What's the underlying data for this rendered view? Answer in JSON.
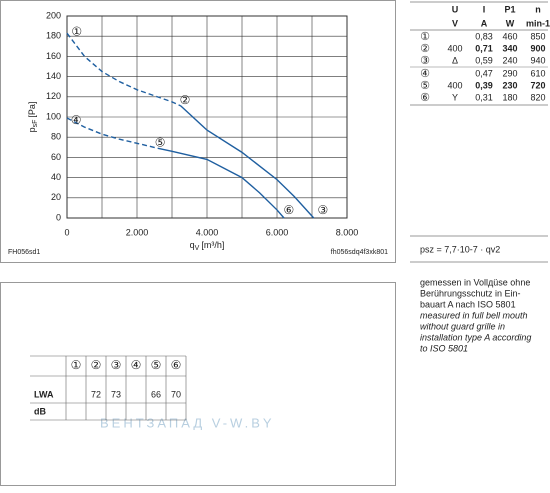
{
  "chart_data": {
    "type": "line",
    "ylabel": {
      "main": "p",
      "sub": "sF",
      "unit": "[Pa]"
    },
    "xlabel": {
      "main": "q",
      "sub": "V",
      "unit": "[m³/h]"
    },
    "xlim": [
      0,
      8000
    ],
    "ylim": [
      0,
      200
    ],
    "xticks": [
      0,
      {
        "value": 2000,
        "label": "2.000"
      },
      {
        "value": 4000,
        "label": "4.000"
      },
      {
        "value": 6000,
        "label": "6.000"
      },
      {
        "value": 8000,
        "label": "8.000"
      }
    ],
    "x_minor_ticks": [
      1000,
      3000,
      5000,
      7000
    ],
    "yticks": [
      0,
      20,
      40,
      60,
      80,
      100,
      120,
      140,
      160,
      180,
      200
    ],
    "grid": true,
    "series": [
      {
        "color": "#1f5fa0",
        "dash": true,
        "x": [
          0,
          500,
          1000,
          1500,
          2000,
          2500,
          3000,
          3250
        ],
        "values": [
          183,
          160,
          145,
          135,
          127,
          121,
          115,
          111
        ]
      },
      {
        "color": "#1f5fa0",
        "dash": false,
        "x": [
          3250,
          4000,
          5000,
          6000,
          6500,
          7050
        ],
        "values": [
          111,
          87,
          65,
          38,
          21,
          0
        ]
      },
      {
        "color": "#1f5fa0",
        "dash": true,
        "x": [
          0,
          500,
          1000,
          1500,
          2000,
          2600
        ],
        "values": [
          99,
          90,
          83,
          78,
          74,
          69
        ]
      },
      {
        "color": "#1f5fa0",
        "dash": false,
        "x": [
          2600,
          3000,
          4000,
          5000,
          5500,
          6000,
          6200
        ],
        "values": [
          69,
          66,
          58,
          40,
          25,
          8,
          0
        ]
      }
    ],
    "annotations": [
      {
        "text": "①",
        "x": 280,
        "y": 184
      },
      {
        "text": "②",
        "x": 3370,
        "y": 116
      },
      {
        "text": "③",
        "x": 7310,
        "y": 7
      },
      {
        "text": "④",
        "x": 260,
        "y": 96
      },
      {
        "text": "⑤",
        "x": 2660,
        "y": 74
      },
      {
        "text": "⑥",
        "x": 6340,
        "y": 7
      }
    ],
    "footer_left": "FH056sd1",
    "footer_right": "fh056sdq4f3xk801"
  },
  "spec_table": {
    "header": [
      "",
      "U",
      "I",
      "P1",
      "n"
    ],
    "units": [
      "",
      "V",
      "A",
      "W",
      "min-1"
    ],
    "rows": [
      [
        "①",
        "",
        "0,83",
        "460",
        "850"
      ],
      [
        "②",
        "400",
        "0,71",
        "340",
        "900"
      ],
      [
        "③",
        "Δ",
        "0,59",
        "240",
        "940"
      ],
      [
        "④",
        "",
        "0,47",
        "290",
        "610"
      ],
      [
        "⑤",
        "400",
        "0,39",
        "230",
        "720"
      ],
      [
        "⑥",
        "Y",
        "0,31",
        "180",
        "820"
      ]
    ]
  },
  "formula": "psz = 7,7·10-7 · qv2",
  "sound_table": {
    "header": [
      "①",
      "②",
      "③",
      "④",
      "⑤",
      "⑥"
    ],
    "row_label": "LWA",
    "unit": "dB",
    "values": [
      null,
      "72",
      "73",
      null,
      "66",
      "70"
    ]
  },
  "watermark": "ВЕНТЗАПАД  V-W.BY",
  "notes": [
    "gemessen in Vollдüse ohne",
    "Berührungsschutz in Ein-",
    "bauart A nach ISO 5801"
  ],
  "notes_en": [
    "measured in full bell mouth",
    "without guard grille in",
    "installation type A according",
    "to ISO 5801"
  ]
}
